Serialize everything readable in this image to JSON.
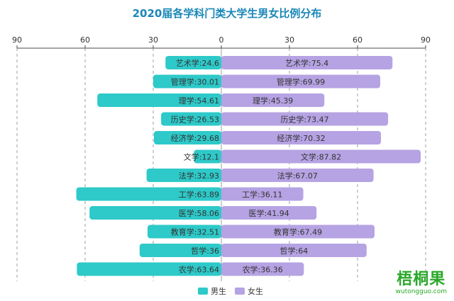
{
  "chart_data": {
    "type": "bar",
    "title": "2020届各学科门类大学生男女比例分布",
    "orientation": "horizontal-diverging",
    "categories": [
      "艺术学",
      "管理学",
      "理学",
      "历史学",
      "经济学",
      "文学",
      "法学",
      "工学",
      "医学",
      "教育学",
      "哲学",
      "农学"
    ],
    "series": [
      {
        "name": "男生",
        "color": "#2ec9c9",
        "direction": "left",
        "values": [
          24.6,
          30.01,
          54.61,
          26.53,
          29.68,
          12.1,
          32.93,
          63.89,
          58.06,
          32.51,
          36,
          63.64
        ]
      },
      {
        "name": "女生",
        "color": "#b5a3e3",
        "direction": "right",
        "values": [
          75.4,
          69.99,
          45.39,
          73.47,
          70.32,
          87.82,
          67.07,
          36.11,
          41.94,
          67.49,
          64,
          36.36
        ]
      }
    ],
    "xlim": [
      -90,
      90
    ],
    "ticks": [
      "90",
      "60",
      "30",
      "0",
      "30",
      "60",
      "90"
    ],
    "tick_values": [
      -90,
      -60,
      -30,
      0,
      30,
      60,
      90
    ],
    "grid": true,
    "legend": "bottom-center"
  },
  "watermark": {
    "name": "梧桐果",
    "url": "wutongguo.com"
  }
}
